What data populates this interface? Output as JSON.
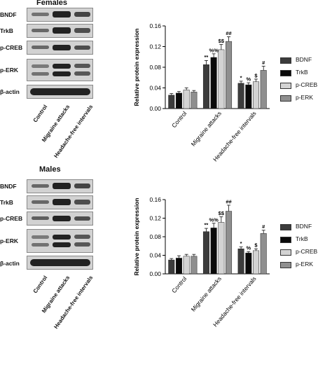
{
  "blots": [
    {
      "title": "Females",
      "markers": [
        "BNDF",
        "TrkB",
        "p-CREB",
        "p-ERK",
        "β-actin"
      ],
      "lanes": [
        "Control",
        "Migraine attacks",
        "Headache-free intervals"
      ]
    },
    {
      "title": "Males",
      "markers": [
        "BNDF",
        "TrkB",
        "p-CREB",
        "p-ERK",
        "β-actin"
      ],
      "lanes": [
        "Control",
        "Migraine attacks",
        "Headache-free intervals"
      ]
    }
  ],
  "chart_data": [
    {
      "type": "bar",
      "title": "",
      "xlabel": "",
      "ylabel": "Relative protein expression",
      "ylim": [
        0,
        0.16
      ],
      "yticks": [
        "0.00",
        "0.04",
        "0.08",
        "0.12",
        "0.16"
      ],
      "categories": [
        "Control",
        "Migraine attacks",
        "Headache-free intervals"
      ],
      "series": [
        {
          "name": "BDNF",
          "color": "#3c3c3c",
          "values": [
            0.026,
            0.085,
            0.049
          ],
          "errors": [
            0.003,
            0.008,
            0.004
          ],
          "marks": [
            "",
            "**",
            "*"
          ]
        },
        {
          "name": "TrkB",
          "color": "#0a0a0a",
          "values": [
            0.03,
            0.099,
            0.046
          ],
          "errors": [
            0.003,
            0.007,
            0.004
          ],
          "marks": [
            "",
            "%%",
            "%"
          ]
        },
        {
          "name": "p-CREB",
          "color": "#d3d3d3",
          "values": [
            0.036,
            0.114,
            0.052
          ],
          "errors": [
            0.004,
            0.01,
            0.005
          ],
          "marks": [
            "",
            "$$",
            "$"
          ]
        },
        {
          "name": "p-ERK",
          "color": "#8f8f8f",
          "values": [
            0.032,
            0.13,
            0.074
          ],
          "errors": [
            0.003,
            0.009,
            0.008
          ],
          "marks": [
            "",
            "##",
            "#"
          ]
        }
      ],
      "legend_position": "right",
      "grid": false
    },
    {
      "type": "bar",
      "title": "",
      "xlabel": "",
      "ylabel": "Relative protein expression",
      "ylim": [
        0,
        0.16
      ],
      "yticks": [
        "0.00",
        "0.04",
        "0.08",
        "0.12",
        "0.16"
      ],
      "categories": [
        "Control",
        "Migraine attacks",
        "Headache-free intervals"
      ],
      "series": [
        {
          "name": "BDNF",
          "color": "#3c3c3c",
          "values": [
            0.03,
            0.091,
            0.054
          ],
          "errors": [
            0.003,
            0.007,
            0.004
          ],
          "marks": [
            "",
            "**",
            "*"
          ]
        },
        {
          "name": "TrkB",
          "color": "#0a0a0a",
          "values": [
            0.034,
            0.099,
            0.045
          ],
          "errors": [
            0.005,
            0.01,
            0.003
          ],
          "marks": [
            "",
            "%%",
            "%"
          ]
        },
        {
          "name": "p-CREB",
          "color": "#d3d3d3",
          "values": [
            0.038,
            0.111,
            0.05
          ],
          "errors": [
            0.004,
            0.012,
            0.004
          ],
          "marks": [
            "",
            "$$",
            "$"
          ]
        },
        {
          "name": "p-ERK",
          "color": "#8f8f8f",
          "values": [
            0.038,
            0.135,
            0.087
          ],
          "errors": [
            0.004,
            0.013,
            0.007
          ],
          "marks": [
            "",
            "##",
            "#"
          ]
        }
      ],
      "legend_position": "right",
      "grid": false
    }
  ]
}
